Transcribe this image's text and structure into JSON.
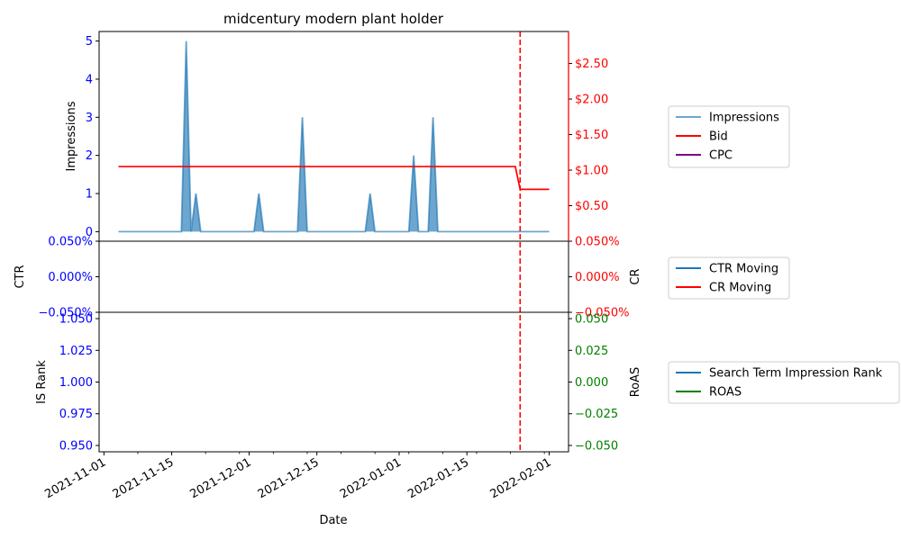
{
  "chart_data": {
    "type": "line",
    "title": "midcentury modern plant holder",
    "xlabel": "Date",
    "x_ticks": [
      "2021-11-01",
      "2021-11-15",
      "2021-12-01",
      "2021-12-15",
      "2022-01-01",
      "2022-01-15",
      "2022-02-01"
    ],
    "x_tick_days": [
      0,
      14,
      30,
      44,
      61,
      75,
      92
    ],
    "x_range_days": [
      -1,
      96
    ],
    "vline_day": 86,
    "colors": {
      "impressions": "#1f77b4",
      "bid": "#ff0000",
      "cpc": "#800080",
      "ctr": "#1f77b4",
      "cr": "#ff0000",
      "rank": "#1f77b4",
      "roas": "#008000",
      "left_tick": "#0000ff",
      "right_tick_top": "#ff0000",
      "right_tick_bottom": "#008000"
    },
    "panels": [
      {
        "id": "top",
        "left_label": "Impressions",
        "right_label": "",
        "left_ylim": [
          -0.25,
          5.25
        ],
        "left_ticks": [
          "0",
          "1",
          "2",
          "3",
          "4",
          "5"
        ],
        "left_tick_values": [
          0,
          1,
          2,
          3,
          4,
          5
        ],
        "right_ylim": [
          0,
          2.95
        ],
        "right_ticks": [
          "$0.50",
          "$1.00",
          "$1.50",
          "$2.00",
          "$2.50"
        ],
        "right_tick_values": [
          0.5,
          1.0,
          1.5,
          2.0,
          2.5
        ],
        "legend": [
          "Impressions",
          "Bid",
          "CPC"
        ]
      },
      {
        "id": "middle",
        "left_label": "CTR",
        "right_label": "CR",
        "left_ylim": [
          -0.05,
          0.05
        ],
        "left_ticks": [
          "−0.050%",
          "0.000%",
          "0.050%"
        ],
        "left_tick_values": [
          -0.05,
          0,
          0.05
        ],
        "right_ylim": [
          -0.05,
          0.05
        ],
        "right_ticks": [
          "−0.050%",
          "0.000%",
          "0.050%"
        ],
        "right_tick_values": [
          -0.05,
          0,
          0.05
        ],
        "legend": [
          "CTR Moving",
          "CR Moving"
        ]
      },
      {
        "id": "bottom",
        "left_label": "IS Rank",
        "right_label": "RoAS",
        "left_ylim": [
          0.945,
          1.055
        ],
        "left_ticks": [
          "0.950",
          "0.975",
          "1.000",
          "1.025",
          "1.050"
        ],
        "left_tick_values": [
          0.95,
          0.975,
          1.0,
          1.025,
          1.05
        ],
        "right_ylim": [
          -0.055,
          0.055
        ],
        "right_ticks": [
          "−0.050",
          "−0.025",
          "0.000",
          "0.025",
          "0.050"
        ],
        "right_tick_values": [
          -0.05,
          -0.025,
          0,
          0.025,
          0.05
        ],
        "legend": [
          "Search Term Impression Rank",
          "ROAS"
        ]
      }
    ],
    "impressions_series": {
      "start_day": 3,
      "end_day": 92,
      "spikes": [
        {
          "day": 17,
          "value": 5
        },
        {
          "day": 19,
          "value": 1
        },
        {
          "day": 32,
          "value": 1
        },
        {
          "day": 41,
          "value": 3
        },
        {
          "day": 55,
          "value": 1
        },
        {
          "day": 64,
          "value": 2
        },
        {
          "day": 68,
          "value": 3
        }
      ]
    },
    "bid_series": {
      "x": [
        3,
        85,
        86,
        92
      ],
      "values": [
        1.05,
        1.05,
        0.73,
        0.73
      ]
    }
  }
}
